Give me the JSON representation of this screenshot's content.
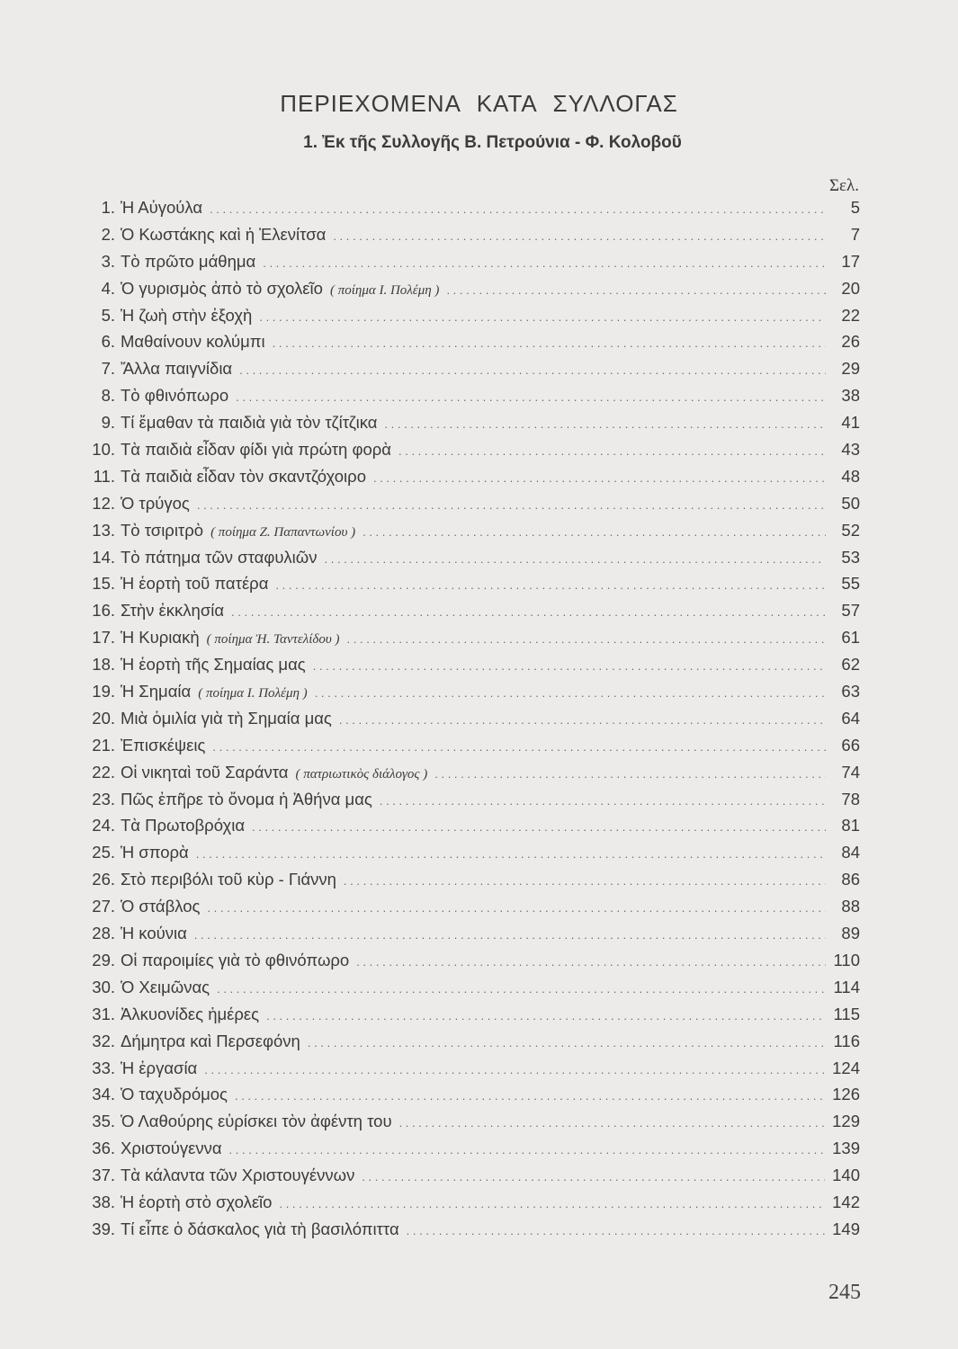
{
  "heading": "ΠΕΡΙΕΧΟΜΕΝΑ ΚΑΤΑ ΣΥΛΛΟΓΑΣ",
  "subheading": "1. Ἐκ τῆς Συλλογῆς Β. Πετρούνια - Φ. Κολοβοῦ",
  "page_column_label": "Σελ.",
  "entries": [
    {
      "num": "1.",
      "title": "Ἡ Αὐγούλα",
      "note": "",
      "page": "5"
    },
    {
      "num": "2.",
      "title": "Ὁ Κωστάκης καὶ ἡ Ἑλενίτσα",
      "note": "",
      "page": "7"
    },
    {
      "num": "3.",
      "title": "Τὸ πρῶτο μάθημα",
      "note": "",
      "page": "17"
    },
    {
      "num": "4.",
      "title": "Ὁ γυρισμὸς ἀπὸ τὸ σχολεῖο",
      "note": "( ποίημα Ι. Πολέμη )",
      "page": "20"
    },
    {
      "num": "5.",
      "title": "Ἡ ζωὴ στὴν ἐξοχὴ",
      "note": "",
      "page": "22"
    },
    {
      "num": "6.",
      "title": "Μαθαίνουν κολύμπι",
      "note": "",
      "page": "26"
    },
    {
      "num": "7.",
      "title": "Ἄλλα παιγνίδια",
      "note": "",
      "page": "29"
    },
    {
      "num": "8.",
      "title": "Τὸ φθινόπωρο",
      "note": "",
      "page": "38"
    },
    {
      "num": "9.",
      "title": "Τί ἔμαθαν τὰ παιδιὰ γιὰ τὸν τζίτζικα",
      "note": "",
      "page": "41"
    },
    {
      "num": "10.",
      "title": "Τὰ παιδιὰ εἶδαν φίδι γιὰ πρώτη φορὰ",
      "note": "",
      "page": "43"
    },
    {
      "num": "11.",
      "title": "Τὰ παιδιὰ εἶδαν τὸν σκαντζόχοιρο",
      "note": "",
      "page": "48"
    },
    {
      "num": "12.",
      "title": "Ὁ τρύγος",
      "note": "",
      "page": "50"
    },
    {
      "num": "13.",
      "title": "Τὸ τσιριτρὸ",
      "note": "( ποίημα Ζ. Παπαντωνίου )",
      "page": "52"
    },
    {
      "num": "14.",
      "title": "Τὸ πάτημα τῶν σταφυλιῶν",
      "note": "",
      "page": "53"
    },
    {
      "num": "15.",
      "title": "Ἡ ἑορτὴ τοῦ πατέρα",
      "note": "",
      "page": "55"
    },
    {
      "num": "16.",
      "title": "Στὴν ἐκκλησία",
      "note": "",
      "page": "57"
    },
    {
      "num": "17.",
      "title": "Ἡ Κυριακὴ",
      "note": "( ποίημα Ἠ. Ταντελίδου )",
      "page": "61"
    },
    {
      "num": "18.",
      "title": "Ἡ ἑορτὴ τῆς Σημαίας μας",
      "note": "",
      "page": "62"
    },
    {
      "num": "19.",
      "title": "Ἡ Σημαία",
      "note": "( ποίημα Ι. Πολέμη )",
      "page": "63"
    },
    {
      "num": "20.",
      "title": "Μιὰ ὁμιλία γιὰ τὴ Σημαία μας",
      "note": "",
      "page": "64"
    },
    {
      "num": "21.",
      "title": "Ἐπισκέψεις",
      "note": "",
      "page": "66"
    },
    {
      "num": "22.",
      "title": "Οἱ νικηταὶ τοῦ Σαράντα",
      "note": "( πατριωτικὸς διάλογος )",
      "page": "74"
    },
    {
      "num": "23.",
      "title": "Πῶς ἐπῆρε τὸ ὄνομα ἡ Ἀθήνα μας",
      "note": "",
      "page": "78"
    },
    {
      "num": "24.",
      "title": "Τὰ Πρωτοβρόχια",
      "note": "",
      "page": "81"
    },
    {
      "num": "25.",
      "title": "Ἡ σπορὰ",
      "note": "",
      "page": "84"
    },
    {
      "num": "26.",
      "title": "Στὸ περιβόλι τοῦ κὺρ - Γιάννη",
      "note": "",
      "page": "86"
    },
    {
      "num": "27.",
      "title": "Ὁ στάβλος",
      "note": "",
      "page": "88"
    },
    {
      "num": "28.",
      "title": "Ἡ κούνια",
      "note": "",
      "page": "89"
    },
    {
      "num": "29.",
      "title": "Οἱ παροιμίες γιὰ τὸ φθινόπωρο",
      "note": "",
      "page": "110"
    },
    {
      "num": "30.",
      "title": "Ὁ Χειμῶνας",
      "note": "",
      "page": "114"
    },
    {
      "num": "31.",
      "title": "Ἀλκυονίδες ἡμέρες",
      "note": "",
      "page": "115"
    },
    {
      "num": "32.",
      "title": "Δήμητρα καὶ Περσεφόνη",
      "note": "",
      "page": "116"
    },
    {
      "num": "33.",
      "title": "Ἡ ἐργασία",
      "note": "",
      "page": "124"
    },
    {
      "num": "34.",
      "title": "Ὁ ταχυδρόμος",
      "note": "",
      "page": "126"
    },
    {
      "num": "35.",
      "title": "Ὁ Λαθούρης εὑρίσκει τὸν ἀφέντη του",
      "note": "",
      "page": "129"
    },
    {
      "num": "36.",
      "title": "Χριστούγεννα",
      "note": "",
      "page": "139"
    },
    {
      "num": "37.",
      "title": "Τὰ κάλαντα τῶν Χριστουγέννων",
      "note": "",
      "page": "140"
    },
    {
      "num": "38.",
      "title": "Ἡ ἑορτὴ στὸ σχολεῖο",
      "note": "",
      "page": "142"
    },
    {
      "num": "39.",
      "title": "Τί εἶπε ὁ δάσκαλος γιὰ τὴ βασιλόπιττα",
      "note": "",
      "page": "149"
    }
  ],
  "folio": "245"
}
